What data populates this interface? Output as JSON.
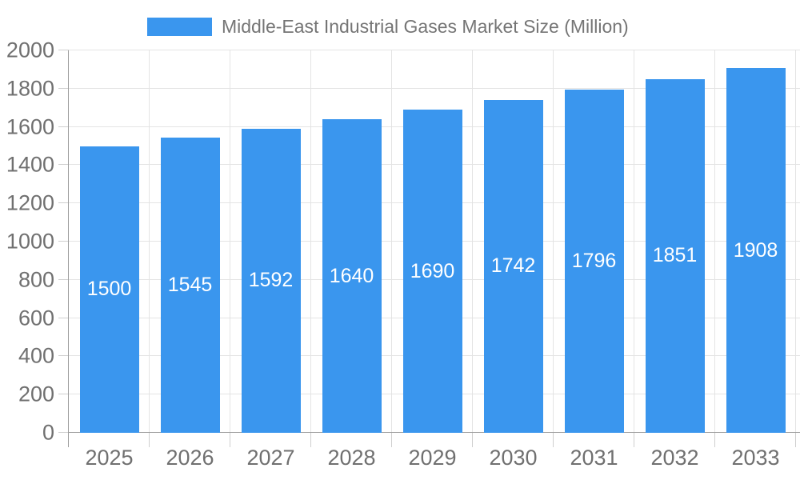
{
  "chart_data": {
    "type": "bar",
    "title": "Middle-East Industrial Gases Market Size (Million)",
    "legend_position": "top",
    "categories": [
      "2025",
      "2026",
      "2027",
      "2028",
      "2029",
      "2030",
      "2031",
      "2032",
      "2033"
    ],
    "values": [
      1500,
      1545,
      1592,
      1640,
      1690,
      1742,
      1796,
      1851,
      1908
    ],
    "value_labels": [
      "1500",
      "1545",
      "1592",
      "1640",
      "1690",
      "1742",
      "1796",
      "1851",
      "1908"
    ],
    "xlabel": "",
    "ylabel": "",
    "ylim": [
      0,
      2000
    ],
    "ytick_interval": 200,
    "ytick_labels": [
      "0",
      "200",
      "400",
      "600",
      "800",
      "1000",
      "1200",
      "1400",
      "1600",
      "1800",
      "2000"
    ],
    "grid": true,
    "colors": {
      "bar": "#3a96ee",
      "value_label": "#ffffff",
      "axis_text": "#707070",
      "title_text": "#757575",
      "gridline": "#e3e3e3",
      "axis_line": "#9e9e9e",
      "tick_mark": "#cfcfcf"
    }
  }
}
